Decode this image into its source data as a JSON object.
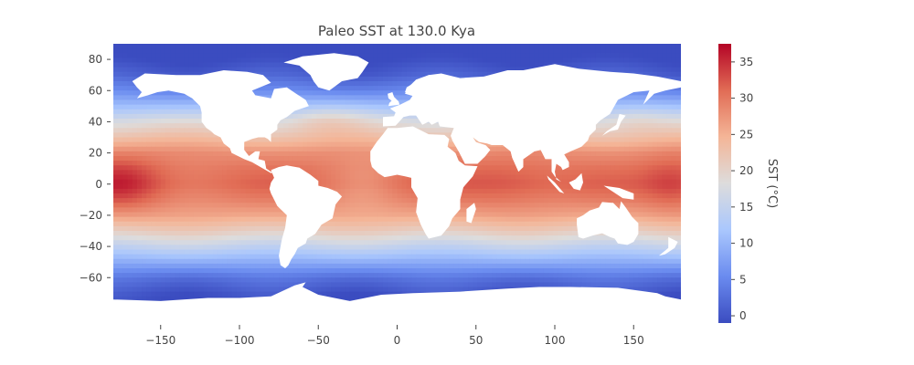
{
  "chart_data": {
    "type": "heatmap",
    "title": "Paleo SST at 130.0 Kya",
    "xlabel": "",
    "ylabel": "",
    "xlim": [
      -180,
      180
    ],
    "ylim": [
      -78,
      90
    ],
    "x_ticks": [
      -150,
      -100,
      -50,
      0,
      50,
      100,
      150
    ],
    "x_tick_labels": [
      "−150",
      "−100",
      "−50",
      "0",
      "50",
      "100",
      "150"
    ],
    "y_ticks": [
      -60,
      -40,
      -20,
      0,
      20,
      40,
      60,
      80
    ],
    "y_tick_labels": [
      "−60",
      "−40",
      "−20",
      "0",
      "20",
      "40",
      "60",
      "80"
    ],
    "colorbar": {
      "label": "SST (°C)",
      "range": [
        -1,
        37.5
      ],
      "ticks": [
        0,
        5,
        10,
        15,
        20,
        25,
        30,
        35
      ],
      "tick_labels": [
        "0",
        "5",
        "10",
        "15",
        "20",
        "25",
        "30",
        "35"
      ],
      "colormap": "coolwarm",
      "stops": [
        "#3b4cc0",
        "#6a8bef",
        "#aac7fd",
        "#dddcdc",
        "#f4b597",
        "#e16c55",
        "#b40426"
      ]
    },
    "sst_profile": {
      "latitude": [
        -78,
        -70,
        -60,
        -50,
        -40,
        -30,
        -20,
        -10,
        0,
        10,
        20,
        30,
        40,
        50,
        60,
        70,
        80,
        90
      ],
      "sst_c": [
        -1,
        0,
        3,
        9,
        15,
        21,
        26,
        29,
        31,
        30,
        28,
        23,
        18,
        11,
        5,
        1,
        -1,
        -1.5
      ],
      "max_c": 37.5,
      "min_c": -1.5
    },
    "land_color": "#ffffff"
  }
}
